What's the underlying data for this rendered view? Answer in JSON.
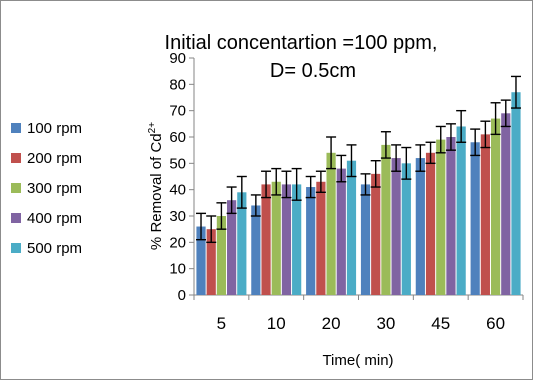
{
  "chart_data": {
    "type": "bar",
    "title": "Initial concentartion =100 ppm,",
    "subtitle": "D= 0.5cm",
    "xlabel": "Time( min)",
    "ylabel_prefix": "% Removal of  Cd",
    "ylabel_superscript": "2+",
    "ylim": [
      0,
      90
    ],
    "y_ticks": [
      0,
      10,
      20,
      30,
      40,
      50,
      60,
      70,
      80,
      90
    ],
    "grid": false,
    "legend_position": "left",
    "categories": [
      "5",
      "10",
      "20",
      "30",
      "45",
      "60"
    ],
    "series": [
      {
        "name": "100 rpm",
        "color": "#4F81BD",
        "values": [
          26,
          34,
          41,
          42,
          52,
          58
        ],
        "errors": [
          5,
          4,
          4,
          4,
          5,
          5
        ]
      },
      {
        "name": "200 rpm",
        "color": "#C0504D",
        "values": [
          25,
          42,
          43,
          46,
          54,
          61
        ],
        "errors": [
          5,
          5,
          4,
          5,
          4,
          5
        ]
      },
      {
        "name": "300 rpm",
        "color": "#9BBB59",
        "values": [
          30,
          43,
          54,
          57,
          59,
          67
        ],
        "errors": [
          5,
          5,
          6,
          5,
          5,
          6
        ]
      },
      {
        "name": "400 rpm",
        "color": "#8064A2",
        "values": [
          36,
          42,
          48,
          52,
          60,
          69
        ],
        "errors": [
          5,
          5,
          5,
          5,
          5,
          5
        ]
      },
      {
        "name": "500 rpm",
        "color": "#4BACC6",
        "values": [
          39,
          42,
          51,
          50,
          64,
          77
        ],
        "errors": [
          6,
          6,
          6,
          6,
          6,
          6
        ]
      }
    ]
  }
}
